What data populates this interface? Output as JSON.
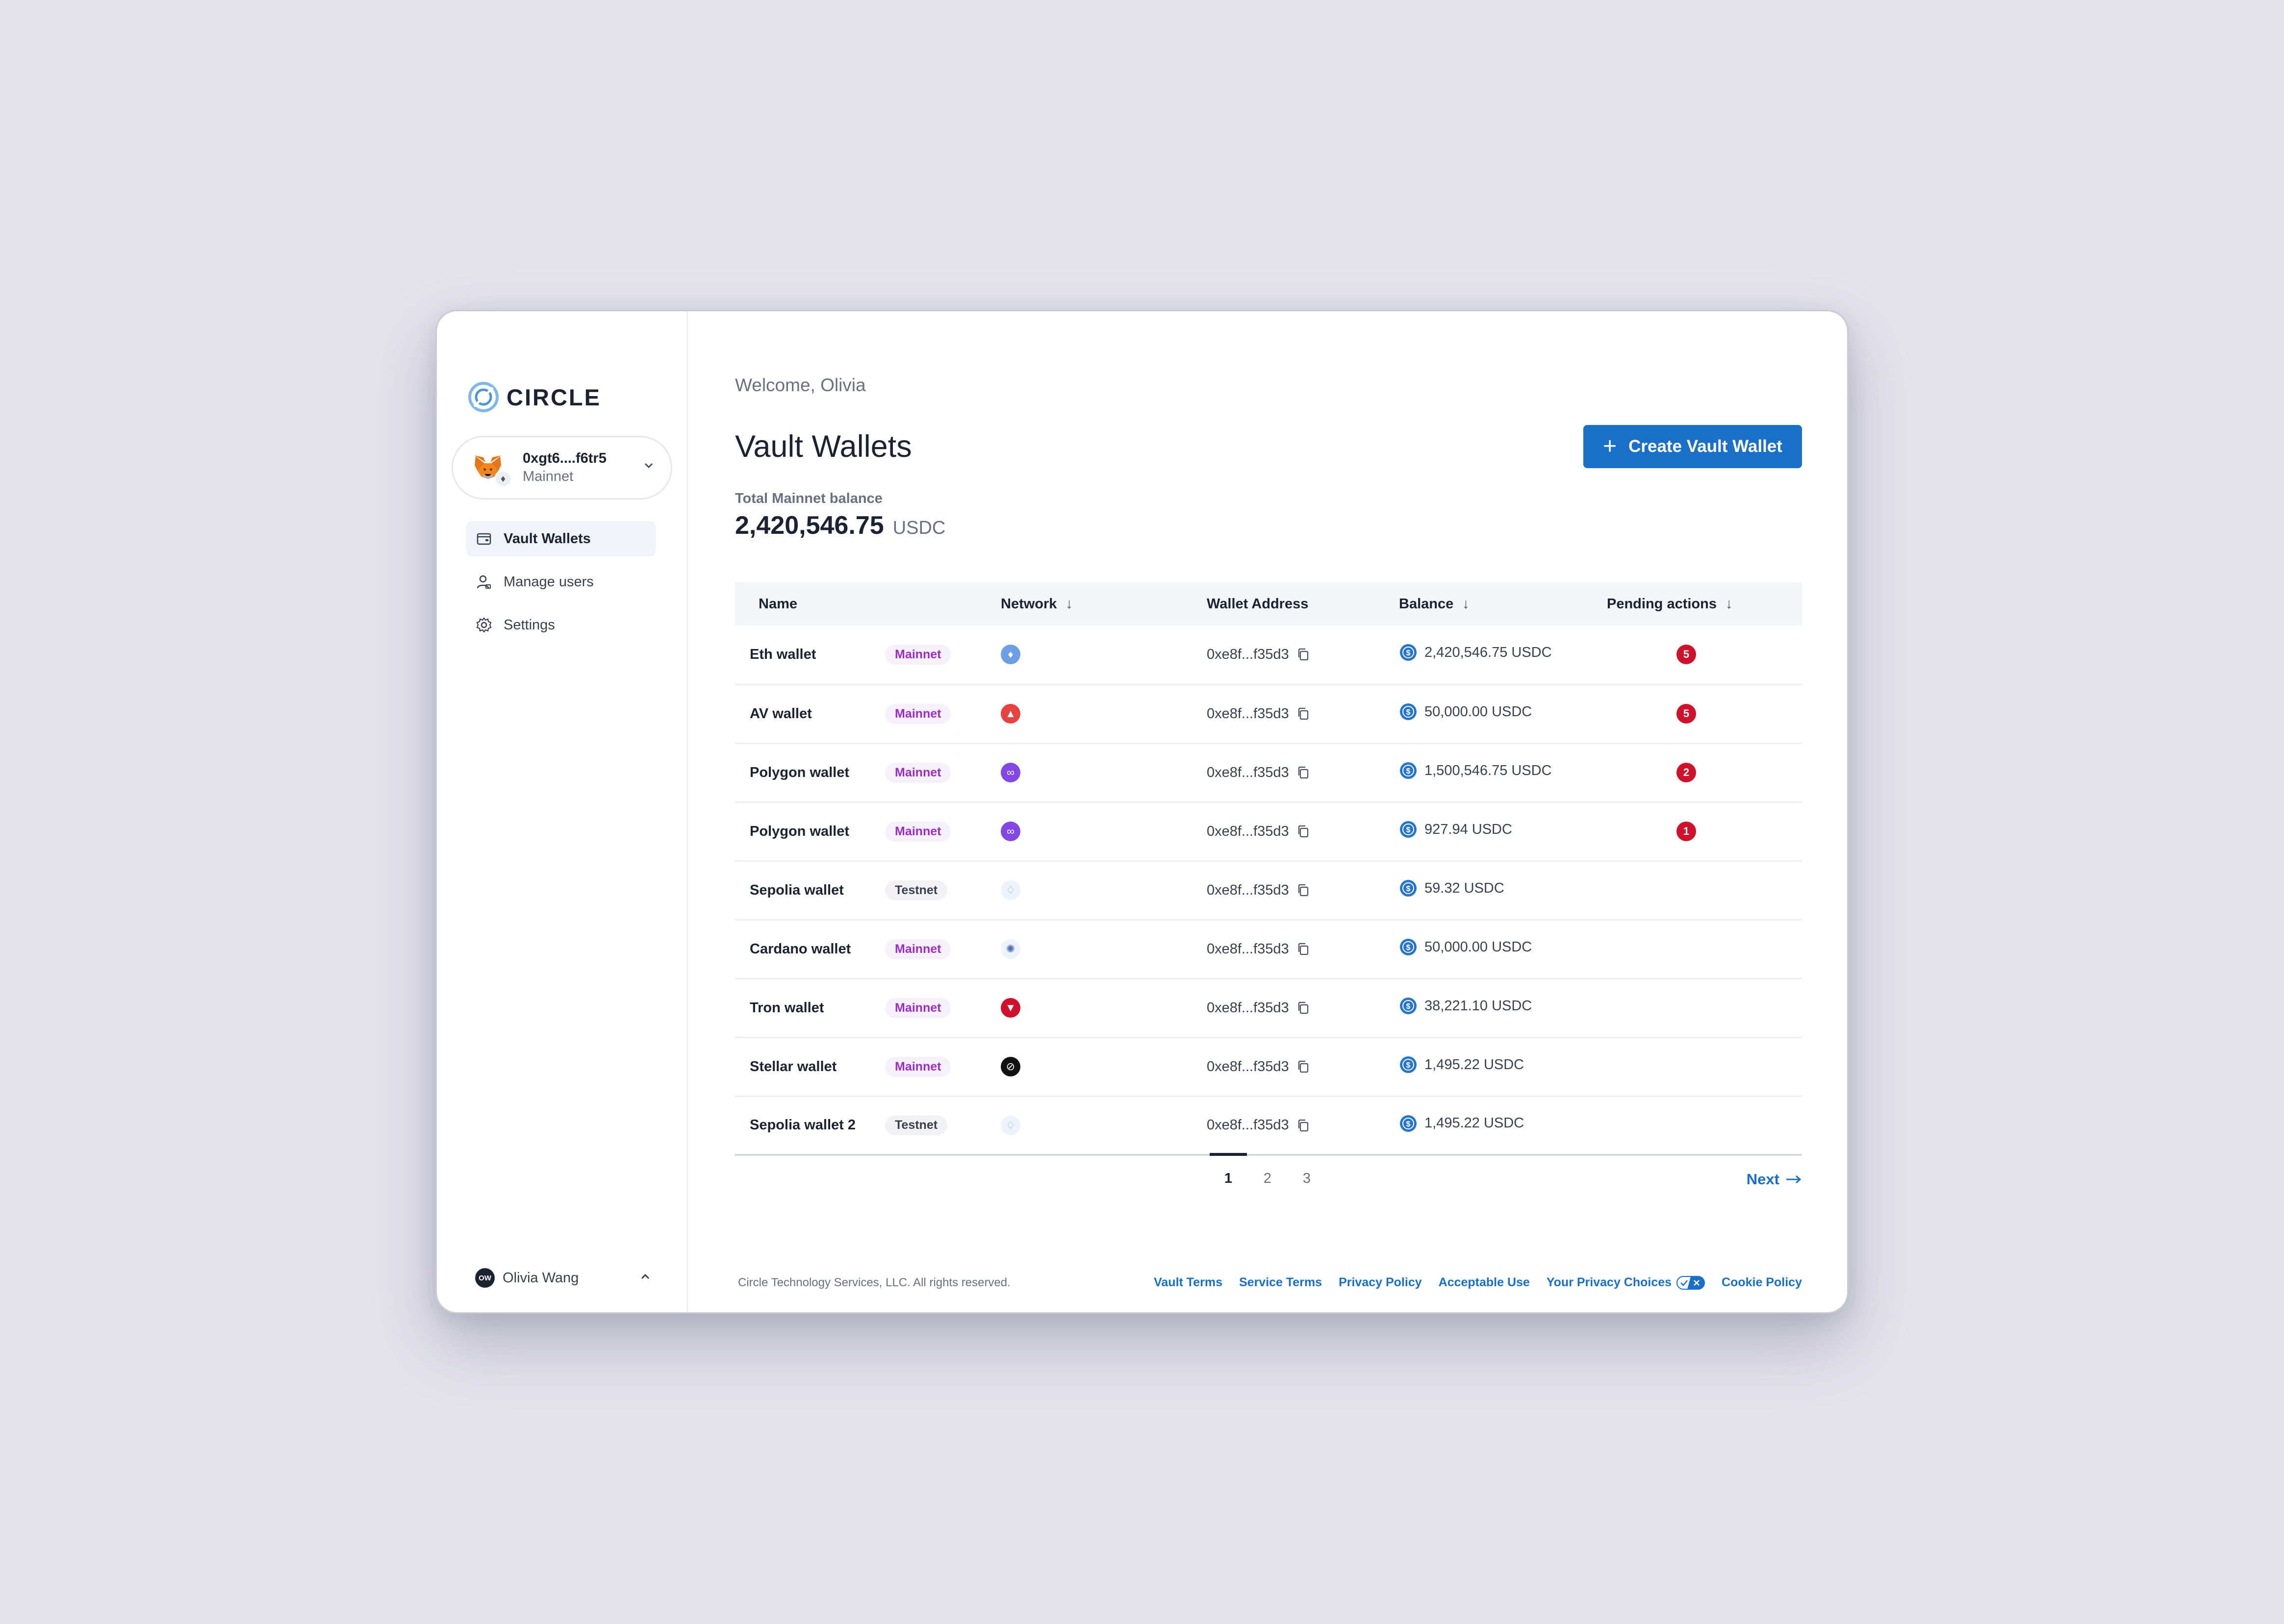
{
  "brand": {
    "name": "CIRCLE"
  },
  "account": {
    "address": "0xgt6....f6tr5",
    "network": "Mainnet"
  },
  "sidebar": {
    "items": [
      {
        "label": "Vault Wallets",
        "icon": "wallet-icon",
        "active": true
      },
      {
        "label": "Manage users",
        "icon": "users-icon",
        "active": false
      },
      {
        "label": "Settings",
        "icon": "gear-icon",
        "active": false
      }
    ]
  },
  "user": {
    "initials": "OW",
    "name": "Olivia Wang"
  },
  "main": {
    "welcome": "Welcome, Olivia",
    "title": "Vault Wallets",
    "create_label": "Create Vault Wallet",
    "total_label": "Total Mainnet balance",
    "total_value": "2,420,546.75",
    "total_unit": "USDC"
  },
  "table": {
    "headers": {
      "name": "Name",
      "network": "Network",
      "address": "Wallet Address",
      "balance": "Balance",
      "pending": "Pending actions"
    },
    "rows": [
      {
        "name": "Eth wallet",
        "env": "Mainnet",
        "network": "ethereum",
        "address": "0xe8f...f35d3",
        "balance": "2,420,546.75 USDC",
        "pending": "5"
      },
      {
        "name": "AV wallet",
        "env": "Mainnet",
        "network": "avalanche",
        "address": "0xe8f...f35d3",
        "balance": "50,000.00 USDC",
        "pending": "5"
      },
      {
        "name": "Polygon wallet",
        "env": "Mainnet",
        "network": "polygon",
        "address": "0xe8f...f35d3",
        "balance": "1,500,546.75 USDC",
        "pending": "2"
      },
      {
        "name": "Polygon wallet",
        "env": "Mainnet",
        "network": "polygon",
        "address": "0xe8f...f35d3",
        "balance": "927.94 USDC",
        "pending": "1"
      },
      {
        "name": "Sepolia wallet",
        "env": "Testnet",
        "network": "sepolia",
        "address": "0xe8f...f35d3",
        "balance": "59.32 USDC",
        "pending": ""
      },
      {
        "name": "Cardano wallet",
        "env": "Mainnet",
        "network": "cardano",
        "address": "0xe8f...f35d3",
        "balance": "50,000.00 USDC",
        "pending": ""
      },
      {
        "name": "Tron wallet",
        "env": "Mainnet",
        "network": "tron",
        "address": "0xe8f...f35d3",
        "balance": "38,221.10 USDC",
        "pending": ""
      },
      {
        "name": "Stellar wallet",
        "env": "Mainnet",
        "network": "stellar",
        "address": "0xe8f...f35d3",
        "balance": "1,495.22 USDC",
        "pending": ""
      },
      {
        "name": "Sepolia wallet 2",
        "env": "Testnet",
        "network": "sepolia",
        "address": "0xe8f...f35d3",
        "balance": "1,495.22 USDC",
        "pending": ""
      }
    ]
  },
  "pagination": {
    "pages": [
      "1",
      "2",
      "3"
    ],
    "current": "1",
    "next_label": "Next"
  },
  "footer": {
    "copyright": "Circle Technology Services, LLC. All rights reserved.",
    "links": [
      "Vault Terms",
      "Service Terms",
      "Privacy Policy",
      "Acceptable Use",
      "Your Privacy Choices",
      "Cookie Policy"
    ]
  },
  "colors": {
    "accent": "#1a6fc9",
    "pending": "#d0112b",
    "mainnet": "#9a2ec2"
  }
}
